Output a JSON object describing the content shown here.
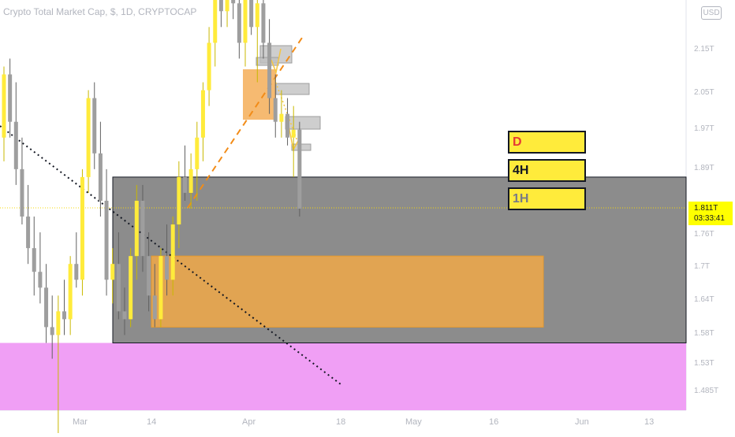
{
  "header": {
    "symbol_title": "Crypto Total Market Cap, $, 1D, CRYPTOCAP",
    "currency_button": "USD"
  },
  "price_tag": {
    "price": "1.811T",
    "countdown": "03:33:41",
    "color": "#ffff00"
  },
  "timeframe_labels": [
    {
      "label": "D",
      "color": "#e53935"
    },
    {
      "label": "4H",
      "color": "#131722"
    },
    {
      "label": "1H",
      "color": "#787b86"
    }
  ],
  "colors": {
    "zone_gray": "#8c8c8c",
    "zone_pink": "#f09ff5",
    "zone_orange": "#f0a848",
    "bull": "#ffeb3b",
    "bear": "#9e9e9e"
  },
  "chart_data": {
    "type": "candlestick",
    "title": "Crypto Total Market Cap, $, 1D, CRYPTOCAP",
    "y_unit": "T",
    "y_ticks": [
      "2.15T",
      "2.05T",
      "1.97T",
      "1.89T",
      "1.76T",
      "1.7T",
      "1.64T",
      "1.58T",
      "1.53T",
      "1.485T"
    ],
    "x_ticks": [
      "Mar",
      "14",
      "Apr",
      "18",
      "May",
      "16",
      "Jun",
      "13"
    ],
    "last_price": 1.811,
    "zones": [
      {
        "name": "gray demand zone",
        "low": 1.64,
        "high": 1.85
      },
      {
        "name": "pink zone",
        "low": 1.43,
        "high": 1.64
      },
      {
        "name": "orange order block",
        "low": 1.66,
        "high": 1.75
      }
    ],
    "candles": [
      [
        1.9,
        1.99,
        1.87,
        1.98
      ],
      [
        1.98,
        2.0,
        1.9,
        1.92
      ],
      [
        1.92,
        1.97,
        1.84,
        1.86
      ],
      [
        1.86,
        1.9,
        1.79,
        1.8
      ],
      [
        1.8,
        1.84,
        1.74,
        1.76
      ],
      [
        1.76,
        1.8,
        1.7,
        1.73
      ],
      [
        1.73,
        1.78,
        1.69,
        1.71
      ],
      [
        1.71,
        1.74,
        1.64,
        1.66
      ],
      [
        1.66,
        1.7,
        1.62,
        1.65
      ],
      [
        1.65,
        1.7,
        1.51,
        1.68
      ],
      [
        1.68,
        1.72,
        1.65,
        1.67
      ],
      [
        1.67,
        1.75,
        1.65,
        1.74
      ],
      [
        1.74,
        1.78,
        1.71,
        1.72
      ],
      [
        1.72,
        1.86,
        1.7,
        1.85
      ],
      [
        1.85,
        1.96,
        1.83,
        1.95
      ],
      [
        1.95,
        1.97,
        1.86,
        1.88
      ],
      [
        1.88,
        1.92,
        1.8,
        1.82
      ],
      [
        1.82,
        1.86,
        1.7,
        1.72
      ],
      [
        1.72,
        1.76,
        1.69,
        1.74
      ],
      [
        1.74,
        1.78,
        1.67,
        1.68
      ],
      [
        1.68,
        1.71,
        1.65,
        1.67
      ],
      [
        1.67,
        1.76,
        1.66,
        1.75
      ],
      [
        1.75,
        1.84,
        1.72,
        1.82
      ],
      [
        1.82,
        1.84,
        1.73,
        1.75
      ],
      [
        1.75,
        1.78,
        1.68,
        1.7
      ],
      [
        1.7,
        1.74,
        1.66,
        1.67
      ],
      [
        1.67,
        1.76,
        1.66,
        1.75
      ],
      [
        1.75,
        1.79,
        1.7,
        1.72
      ],
      [
        1.72,
        1.8,
        1.7,
        1.79
      ],
      [
        1.79,
        1.87,
        1.76,
        1.85
      ],
      [
        1.85,
        1.89,
        1.82,
        1.83
      ],
      [
        1.83,
        1.88,
        1.81,
        1.86
      ],
      [
        1.86,
        1.92,
        1.82,
        1.9
      ],
      [
        1.9,
        1.97,
        1.87,
        1.96
      ],
      [
        1.96,
        2.04,
        1.94,
        2.02
      ],
      [
        2.02,
        2.1,
        1.99,
        2.08
      ],
      [
        2.08,
        2.13,
        2.04,
        2.06
      ],
      [
        2.06,
        2.15,
        2.04,
        2.1
      ],
      [
        2.1,
        2.16,
        2.05,
        2.07
      ],
      [
        2.07,
        2.12,
        2.0,
        2.02
      ],
      [
        2.02,
        2.09,
        1.99,
        2.08
      ],
      [
        2.08,
        2.11,
        2.03,
        2.04
      ],
      [
        2.04,
        2.09,
        1.97,
        2.07
      ],
      [
        2.07,
        2.12,
        2.0,
        2.02
      ],
      [
        2.02,
        2.05,
        1.93,
        1.95
      ],
      [
        1.95,
        1.98,
        1.9,
        1.92
      ],
      [
        1.92,
        1.96,
        1.9,
        1.93
      ],
      [
        1.93,
        1.95,
        1.89,
        1.9
      ],
      [
        1.9,
        1.94,
        1.85,
        1.91
      ],
      [
        1.91,
        1.92,
        1.8,
        1.81
      ]
    ]
  }
}
